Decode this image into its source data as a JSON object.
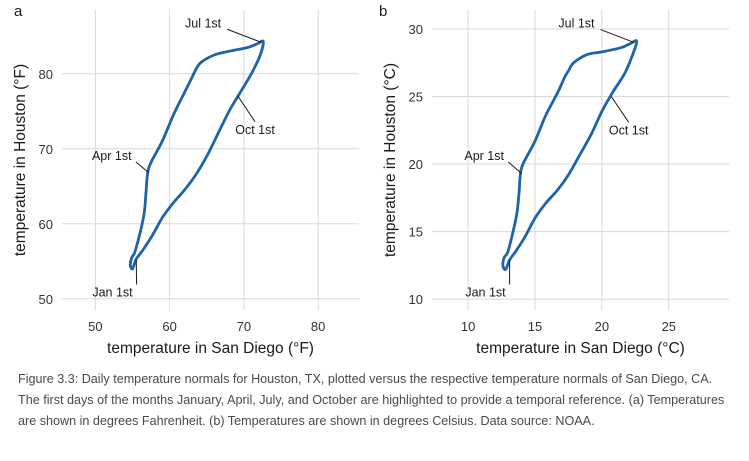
{
  "chart_data": [
    {
      "type": "line",
      "panel": "a",
      "xlabel": "temperature in San Diego (°F)",
      "ylabel": "temperature in Houston (°F)",
      "xlim": [
        45.5,
        85.5
      ],
      "ylim": [
        48.5,
        88.5
      ],
      "xticks": [
        50,
        60,
        70,
        80
      ],
      "yticks": [
        50,
        60,
        70,
        80
      ],
      "grid": true,
      "series": [
        {
          "x": [
            55.4,
            56.5,
            56.8,
            57.0,
            57.4,
            59.0,
            60.5,
            62.0,
            63.0,
            63.5,
            64.2,
            66.0,
            68.0,
            70.5,
            71.8,
            72.6,
            72.2,
            71.0,
            69.5,
            68.0,
            66.5,
            65.0,
            63.5,
            62.0,
            60.5,
            59.0,
            57.7,
            56.4,
            55.5,
            55.0,
            54.7,
            54.9,
            55.4
          ],
          "y": [
            56.5,
            61.0,
            64.0,
            66.5,
            68.0,
            71.0,
            74.5,
            77.5,
            79.5,
            80.5,
            81.5,
            82.5,
            83.0,
            83.5,
            84.0,
            84.3,
            82.5,
            80.0,
            77.5,
            75.0,
            72.0,
            69.0,
            66.5,
            64.5,
            62.8,
            60.8,
            58.5,
            56.5,
            55.3,
            54.0,
            54.5,
            55.5,
            56.5
          ]
        }
      ],
      "annotations": [
        {
          "label": "Jul 1st",
          "x": 72.3,
          "y": 84.2,
          "text_x": 64.5,
          "text_y": 86.2
        },
        {
          "label": "Oct 1st",
          "x": 69.2,
          "y": 77.0,
          "text_x": 71.5,
          "text_y": 72.0
        },
        {
          "label": "Apr 1st",
          "x": 57.2,
          "y": 66.8,
          "text_x": 52.2,
          "text_y": 68.5
        },
        {
          "label": "Jan 1st",
          "x": 55.5,
          "y": 55.2,
          "text_x": 52.3,
          "text_y": 50.3
        }
      ]
    },
    {
      "type": "line",
      "panel": "b",
      "xlabel": "temperature in San Diego (°C)",
      "ylabel": "temperature in Houston (°C)",
      "xlim": [
        7.3,
        29.5
      ],
      "ylim": [
        9.2,
        31.4
      ],
      "xticks": [
        10,
        15,
        20,
        25
      ],
      "yticks": [
        10,
        15,
        20,
        25,
        30
      ],
      "grid": true,
      "series": [
        {
          "x": [
            13.0,
            13.6,
            13.8,
            13.9,
            14.1,
            15.0,
            15.8,
            16.7,
            17.2,
            17.5,
            17.9,
            18.9,
            20.0,
            21.4,
            22.1,
            22.6,
            22.3,
            21.7,
            20.8,
            20.0,
            19.2,
            18.3,
            17.5,
            16.7,
            15.8,
            15.0,
            14.3,
            13.6,
            13.1,
            12.8,
            12.6,
            12.7,
            13.0
          ],
          "y": [
            13.6,
            16.1,
            17.8,
            19.2,
            20.0,
            21.7,
            23.6,
            25.3,
            26.4,
            26.9,
            27.5,
            28.1,
            28.3,
            28.6,
            28.9,
            29.1,
            28.1,
            26.7,
            25.3,
            23.9,
            22.2,
            20.6,
            19.2,
            18.1,
            17.1,
            16.0,
            14.7,
            13.6,
            12.9,
            12.2,
            12.5,
            13.1,
            13.6
          ]
        }
      ],
      "annotations": [
        {
          "label": "Jul 1st",
          "x": 22.4,
          "y": 29.0,
          "text_x": 18.1,
          "text_y": 30.1
        },
        {
          "label": "Oct 1st",
          "x": 20.7,
          "y": 25.0,
          "text_x": 22.0,
          "text_y": 22.2
        },
        {
          "label": "Apr 1st",
          "x": 14.0,
          "y": 19.3,
          "text_x": 11.2,
          "text_y": 20.3
        },
        {
          "label": "Jan 1st",
          "x": 13.1,
          "y": 12.9,
          "text_x": 11.3,
          "text_y": 10.2
        }
      ]
    }
  ],
  "caption": "Figure 3.3: Daily temperature normals for Houston, TX, plotted versus the respective temperature normals of San Diego, CA. The first days of the months January, April, July, and October are highlighted to provide a temporal reference. (a) Temperatures are shown in degrees Fahrenheit. (b) Temperatures are shown in degrees Celsius. Data source: NOAA.",
  "colors": {
    "line": "#1f63a8",
    "grid": "#d9d9d9",
    "text": "#1a1a1a",
    "caption": "#4a4a4a"
  }
}
